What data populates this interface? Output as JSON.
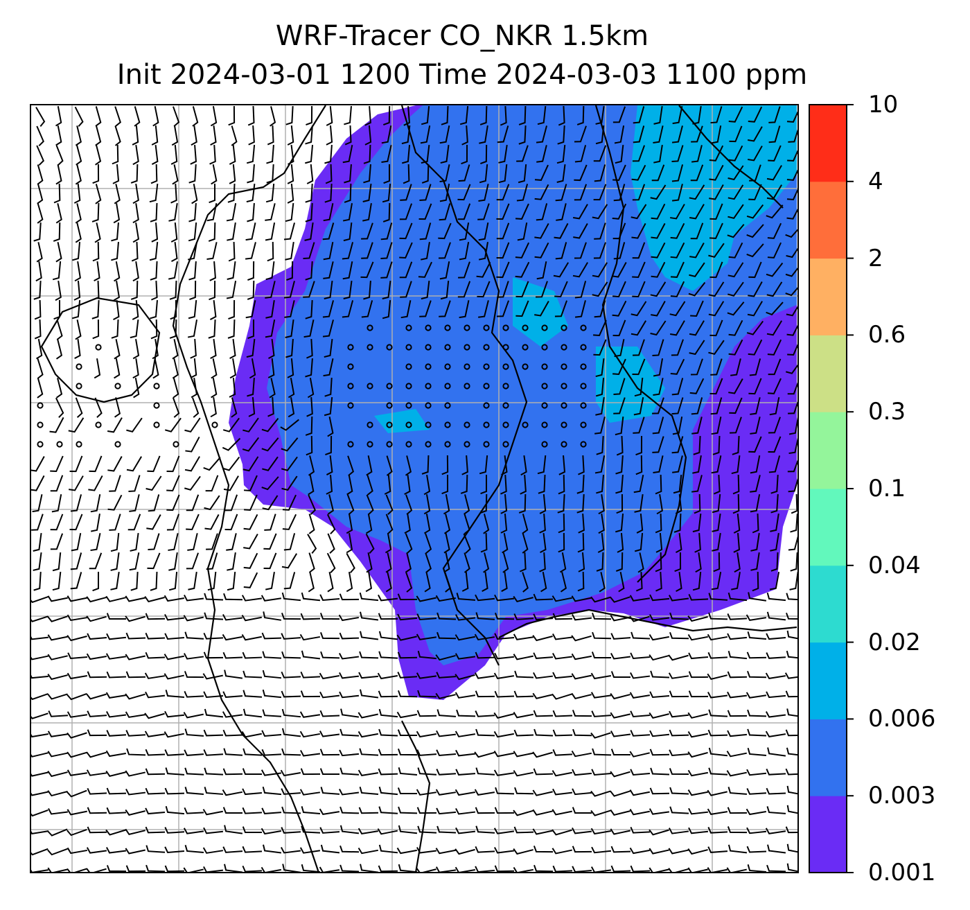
{
  "title": {
    "line1": "WRF-Tracer CO_NKR 1.5km",
    "line2": "Init 2024-03-01 1200 Time 2024-03-03 1100 ppm"
  },
  "colorbar": {
    "levels": [
      "0.001",
      "0.003",
      "0.006",
      "0.02",
      "0.04",
      "0.1",
      "0.3",
      "0.6",
      "2",
      "4",
      "10"
    ],
    "colors": [
      "#6a2cf5",
      "#3272ef",
      "#00b0e8",
      "#2ddbd0",
      "#62f8bc",
      "#94f59b",
      "#cce086",
      "#ffb062",
      "#ff6e3a",
      "#ff2d18"
    ]
  },
  "map": {
    "background": "#ffffff",
    "gridline_color": "#b0b0b0",
    "coastline_color": "#000000",
    "field_colors": {
      "lowest": "#6a2cf5",
      "low": "#3272ef",
      "mid": "#00b0e8"
    }
  }
}
